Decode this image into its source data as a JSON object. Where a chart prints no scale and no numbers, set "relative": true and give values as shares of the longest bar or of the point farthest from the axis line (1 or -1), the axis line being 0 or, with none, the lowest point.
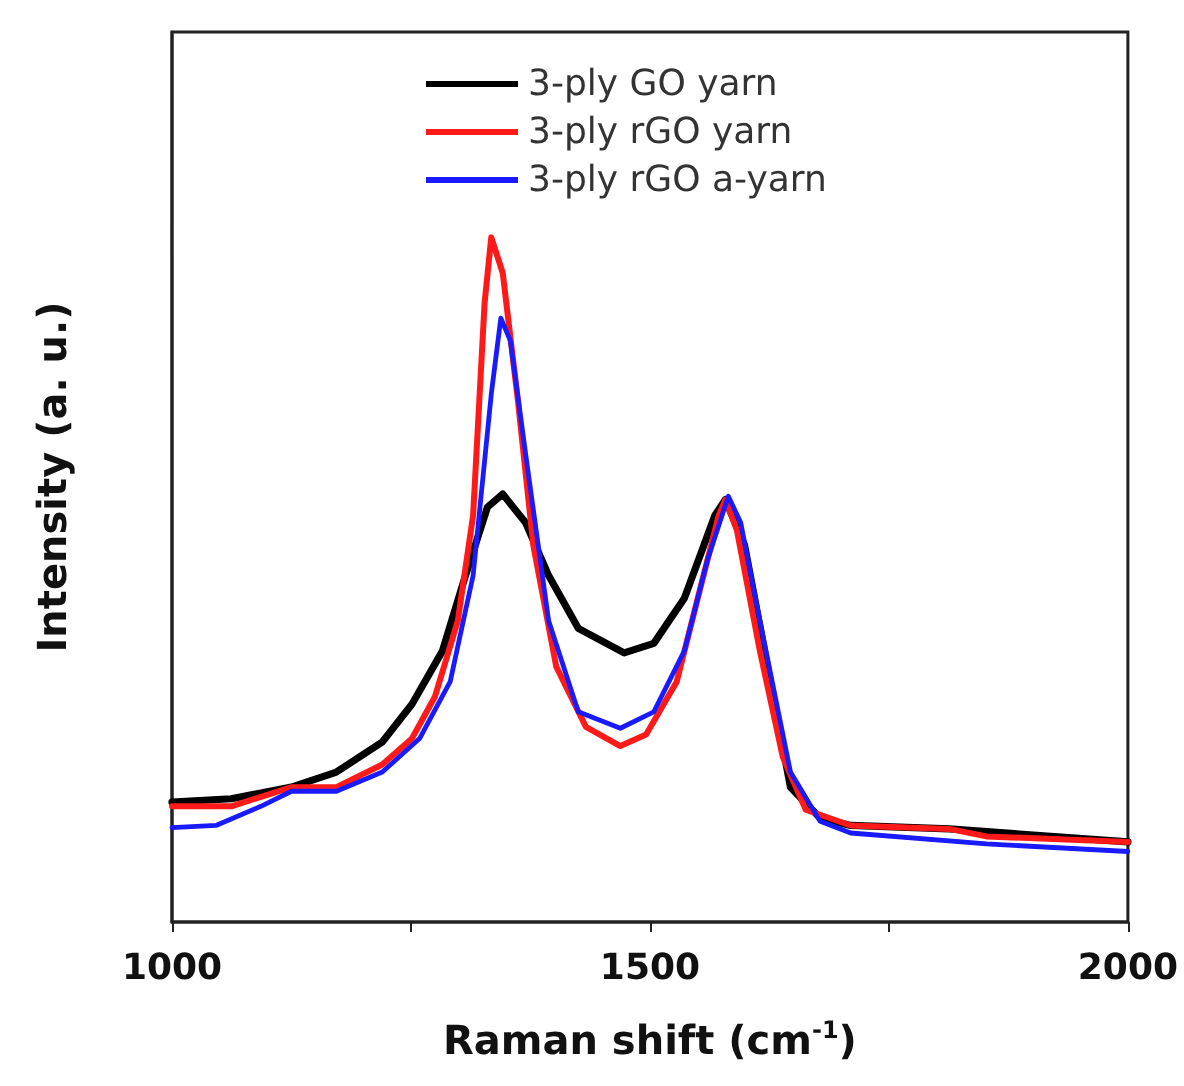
{
  "chart_data": {
    "type": "line",
    "relative": true,
    "xlabel": "Raman shift (cm$^{-1}$)",
    "ylabel": "Intensity (a. u.)",
    "xlim": [
      1000,
      2000
    ],
    "xticks": [
      1000,
      {
        "value": 1250,
        "label": null
      },
      1500,
      {
        "value": 1750,
        "label": null
      },
      2000
    ],
    "legend": "top",
    "grid": false,
    "marker": "none",
    "line_style": "solid",
    "series": [
      {
        "name": "3-ply GO yarn",
        "color": "#000000",
        "x": [
          1000,
          1062,
          1125,
          1172,
          1220,
          1251,
          1283,
          1307,
          1330,
          1346,
          1370,
          1394,
          1425,
          1473,
          1504,
          1536,
          1568,
          1579,
          1599,
          1623,
          1647,
          1678,
          1710,
          1813,
          2000
        ],
        "values": [
          0.175,
          0.18,
          0.197,
          0.219,
          0.263,
          0.318,
          0.396,
          0.506,
          0.606,
          0.625,
          0.583,
          0.506,
          0.429,
          0.393,
          0.407,
          0.473,
          0.594,
          0.617,
          0.55,
          0.373,
          0.197,
          0.152,
          0.141,
          0.136,
          0.117
        ]
      },
      {
        "name": "3-ply rGO yarn",
        "color": "#ff1a1a",
        "x": [
          1000,
          1062,
          1125,
          1172,
          1220,
          1251,
          1275,
          1299,
          1315,
          1327,
          1334,
          1346,
          1362,
          1378,
          1402,
          1433,
          1469,
          1496,
          1528,
          1552,
          1572,
          1579,
          1591,
          1615,
          1639,
          1663,
          1710,
          1813,
          1852,
          2000
        ],
        "values": [
          0.169,
          0.169,
          0.197,
          0.197,
          0.23,
          0.268,
          0.329,
          0.44,
          0.594,
          0.904,
          1.0,
          0.948,
          0.76,
          0.55,
          0.373,
          0.285,
          0.257,
          0.274,
          0.351,
          0.484,
          0.594,
          0.617,
          0.572,
          0.396,
          0.241,
          0.164,
          0.141,
          0.136,
          0.125,
          0.117
        ]
      },
      {
        "name": "3-ply rGO a-yarn",
        "color": "#1a1aff",
        "x": [
          1000,
          1046,
          1093,
          1125,
          1172,
          1220,
          1259,
          1291,
          1315,
          1334,
          1344,
          1354,
          1370,
          1394,
          1425,
          1469,
          1504,
          1536,
          1560,
          1582,
          1595,
          1615,
          1647,
          1678,
          1710,
          1852,
          2000
        ],
        "values": [
          0.138,
          0.141,
          0.169,
          0.191,
          0.191,
          0.219,
          0.268,
          0.351,
          0.506,
          0.771,
          0.882,
          0.849,
          0.683,
          0.44,
          0.307,
          0.283,
          0.307,
          0.396,
          0.528,
          0.622,
          0.583,
          0.44,
          0.219,
          0.147,
          0.13,
          0.114,
          0.103
        ]
      }
    ]
  }
}
